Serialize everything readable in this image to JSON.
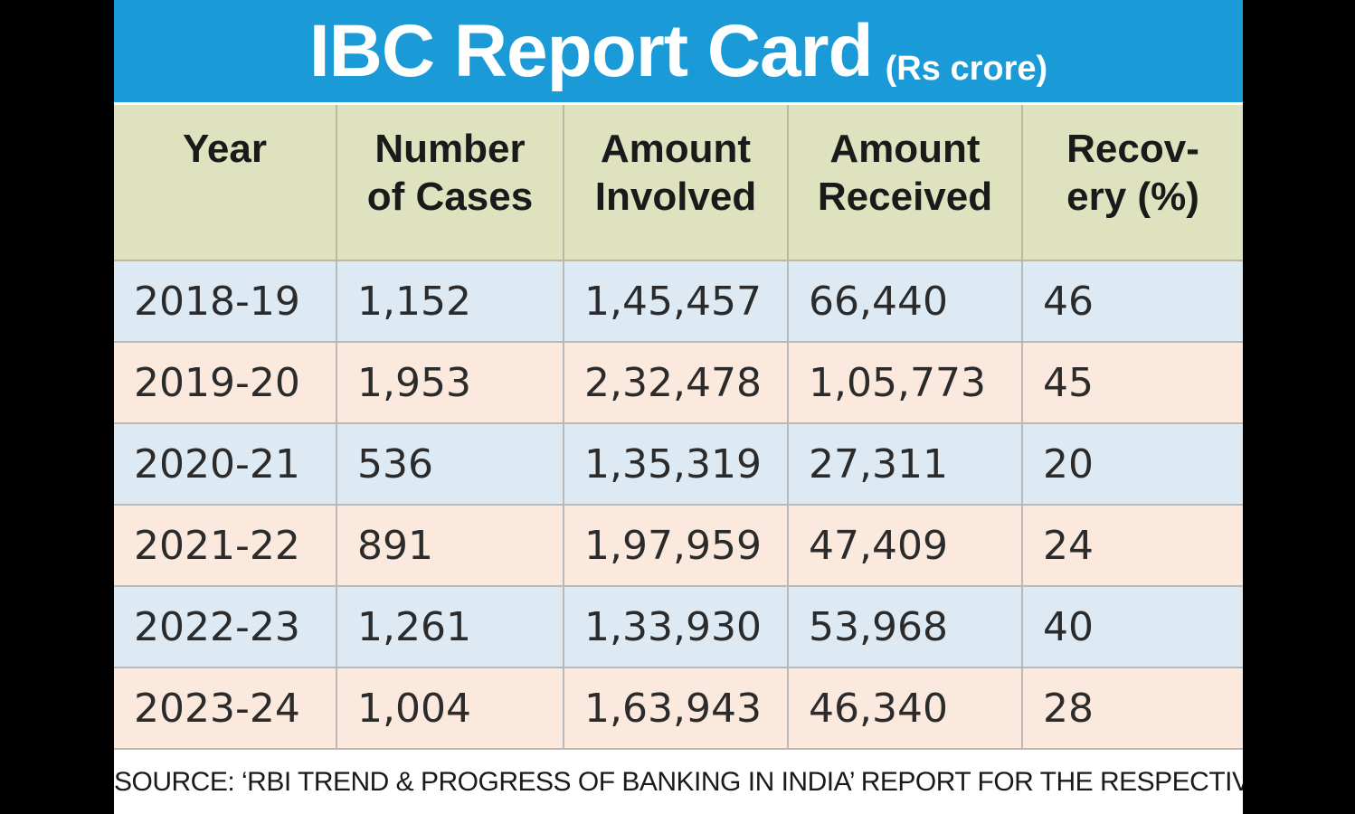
{
  "chart_data": {
    "type": "table",
    "title": "IBC Report Card",
    "unit": "(Rs crore)",
    "columns": [
      "Year",
      "Number\nof Cases",
      "Amount\nInvolved",
      "Amount\nReceived",
      "Recov-\nery (%)"
    ],
    "rows": [
      [
        "2018-19",
        "1,152",
        "1,45,457",
        "66,440",
        "46"
      ],
      [
        "2019-20",
        "1,953",
        "2,32,478",
        "1,05,773",
        "45"
      ],
      [
        "2020-21",
        "536",
        "1,35,319",
        "27,311",
        "20"
      ],
      [
        "2021-22",
        "891",
        "1,97,959",
        "47,409",
        "24"
      ],
      [
        "2022-23",
        "1,261",
        "1,33,930",
        "53,968",
        "40"
      ],
      [
        "2023-24",
        "1,004",
        "1,63,943",
        "46,340",
        "28"
      ]
    ],
    "source": "SOURCE: ‘RBI TREND & PROGRESS OF BANKING IN INDIA’ REPORT FOR THE RESPECTIVE YEARS"
  },
  "colors": {
    "title_bar": "#1a9ad6",
    "header_bg": "#dfe2bf",
    "row_blue": "#dde9f3",
    "row_peach": "#fbe9de"
  }
}
